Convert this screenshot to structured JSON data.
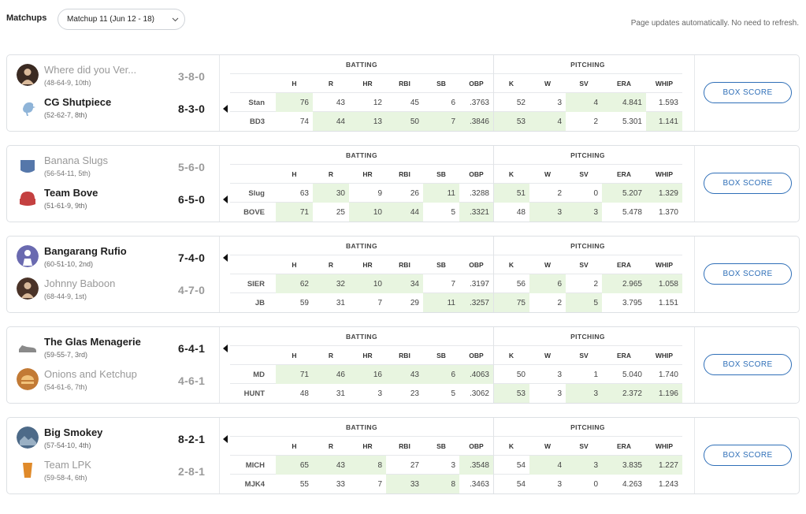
{
  "topbar": {
    "label": "Matchups",
    "selected_matchup": "Matchup 11 (Jun 12 - 18)",
    "note": "Page updates automatically. No need to refresh."
  },
  "columns": {
    "batting_label": "BATTING",
    "pitching_label": "PITCHING",
    "headers": [
      "H",
      "R",
      "HR",
      "RBI",
      "SB",
      "OBP",
      "K",
      "W",
      "SV",
      "ERA",
      "WHIP"
    ]
  },
  "box_score_label": "BOX SCORE",
  "matchups": [
    {
      "teams": [
        {
          "name": "Where did you Ver...",
          "record": "(48-64-9, 10th)",
          "score": "3-8-0",
          "winner": false,
          "abbr": "Stan",
          "icon": "portrait-avatar",
          "color": "#3a2a22"
        },
        {
          "name": "CG Shutpiece",
          "record": "(52-62-7, 8th)",
          "score": "8-3-0",
          "winner": true,
          "abbr": "BD3",
          "icon": "bird-avatar",
          "color": "#8fb4d8"
        }
      ],
      "rows": [
        [
          "76",
          "43",
          "12",
          "45",
          "6",
          ".3763",
          "52",
          "3",
          "4",
          "4.841",
          "1.593"
        ],
        [
          "74",
          "44",
          "13",
          "50",
          "7",
          ".3846",
          "53",
          "4",
          "2",
          "5.301",
          "1.141"
        ]
      ],
      "leaders": [
        [
          1,
          0,
          0,
          0,
          0,
          0,
          0,
          0,
          1,
          1,
          0
        ],
        [
          0,
          1,
          1,
          1,
          1,
          1,
          1,
          1,
          0,
          0,
          1
        ]
      ]
    },
    {
      "teams": [
        {
          "name": "Banana Slugs",
          "record": "(56-54-11, 5th)",
          "score": "5-6-0",
          "winner": false,
          "abbr": "Slug",
          "icon": "slug-mascot-avatar",
          "color": "#5577aa"
        },
        {
          "name": "Team Bove",
          "record": "(51-61-9, 9th)",
          "score": "6-5-0",
          "winner": true,
          "abbr": "BOVE",
          "icon": "cap-avatar",
          "color": "#c44040"
        }
      ],
      "rows": [
        [
          "63",
          "30",
          "9",
          "26",
          "11",
          ".3288",
          "51",
          "2",
          "0",
          "5.207",
          "1.329"
        ],
        [
          "71",
          "25",
          "10",
          "44",
          "5",
          ".3321",
          "48",
          "3",
          "3",
          "5.478",
          "1.370"
        ]
      ],
      "leaders": [
        [
          0,
          1,
          0,
          0,
          1,
          0,
          1,
          0,
          0,
          1,
          1
        ],
        [
          1,
          0,
          1,
          1,
          0,
          1,
          0,
          1,
          1,
          0,
          0
        ]
      ]
    },
    {
      "teams": [
        {
          "name": "Bangarang Rufio",
          "record": "(60-51-10, 2nd)",
          "score": "7-4-0",
          "winner": true,
          "abbr": "SIER",
          "icon": "player-avatar",
          "color": "#6a6ab0"
        },
        {
          "name": "Johnny Baboon",
          "record": "(68-44-9, 1st)",
          "score": "4-7-0",
          "winner": false,
          "abbr": "JB",
          "icon": "portrait-avatar",
          "color": "#4a3328"
        }
      ],
      "rows": [
        [
          "62",
          "32",
          "10",
          "34",
          "7",
          ".3197",
          "56",
          "6",
          "2",
          "2.965",
          "1.058"
        ],
        [
          "59",
          "31",
          "7",
          "29",
          "11",
          ".3257",
          "75",
          "2",
          "5",
          "3.795",
          "1.151"
        ]
      ],
      "leaders": [
        [
          1,
          1,
          1,
          1,
          0,
          0,
          0,
          1,
          0,
          1,
          1
        ],
        [
          0,
          0,
          0,
          0,
          1,
          1,
          1,
          0,
          1,
          0,
          0
        ]
      ]
    },
    {
      "teams": [
        {
          "name": "The Glas Menagerie",
          "record": "(59-55-7, 3rd)",
          "score": "6-4-1",
          "winner": true,
          "abbr": "MD",
          "icon": "shoe-avatar",
          "color": "#8a8a8a"
        },
        {
          "name": "Onions and Ketchup",
          "record": "(54-61-6, 7th)",
          "score": "4-6-1",
          "winner": false,
          "abbr": "HUNT",
          "icon": "food-avatar",
          "color": "#c27a35"
        }
      ],
      "rows": [
        [
          "71",
          "46",
          "16",
          "43",
          "6",
          ".4063",
          "50",
          "3",
          "1",
          "5.040",
          "1.740"
        ],
        [
          "48",
          "31",
          "3",
          "23",
          "5",
          ".3062",
          "53",
          "3",
          "3",
          "2.372",
          "1.196"
        ]
      ],
      "leaders": [
        [
          1,
          1,
          1,
          1,
          1,
          1,
          0,
          0,
          0,
          0,
          0
        ],
        [
          0,
          0,
          0,
          0,
          0,
          0,
          1,
          0,
          1,
          1,
          1
        ]
      ]
    },
    {
      "teams": [
        {
          "name": "Big Smokey",
          "record": "(57-54-10, 4th)",
          "score": "8-2-1",
          "winner": true,
          "abbr": "MICH",
          "icon": "photo-avatar",
          "color": "#4d6a88"
        },
        {
          "name": "Team LPK",
          "record": "(59-58-4, 6th)",
          "score": "2-8-1",
          "winner": false,
          "abbr": "MJK4",
          "icon": "cup-avatar",
          "color": "#e08a2a"
        }
      ],
      "rows": [
        [
          "65",
          "43",
          "8",
          "27",
          "3",
          ".3548",
          "54",
          "4",
          "3",
          "3.835",
          "1.227"
        ],
        [
          "55",
          "33",
          "7",
          "33",
          "8",
          ".3463",
          "54",
          "3",
          "0",
          "4.263",
          "1.243"
        ]
      ],
      "leaders": [
        [
          1,
          1,
          1,
          0,
          0,
          1,
          0,
          1,
          1,
          1,
          1
        ],
        [
          0,
          0,
          0,
          1,
          1,
          0,
          0,
          0,
          0,
          0,
          0
        ]
      ]
    }
  ]
}
